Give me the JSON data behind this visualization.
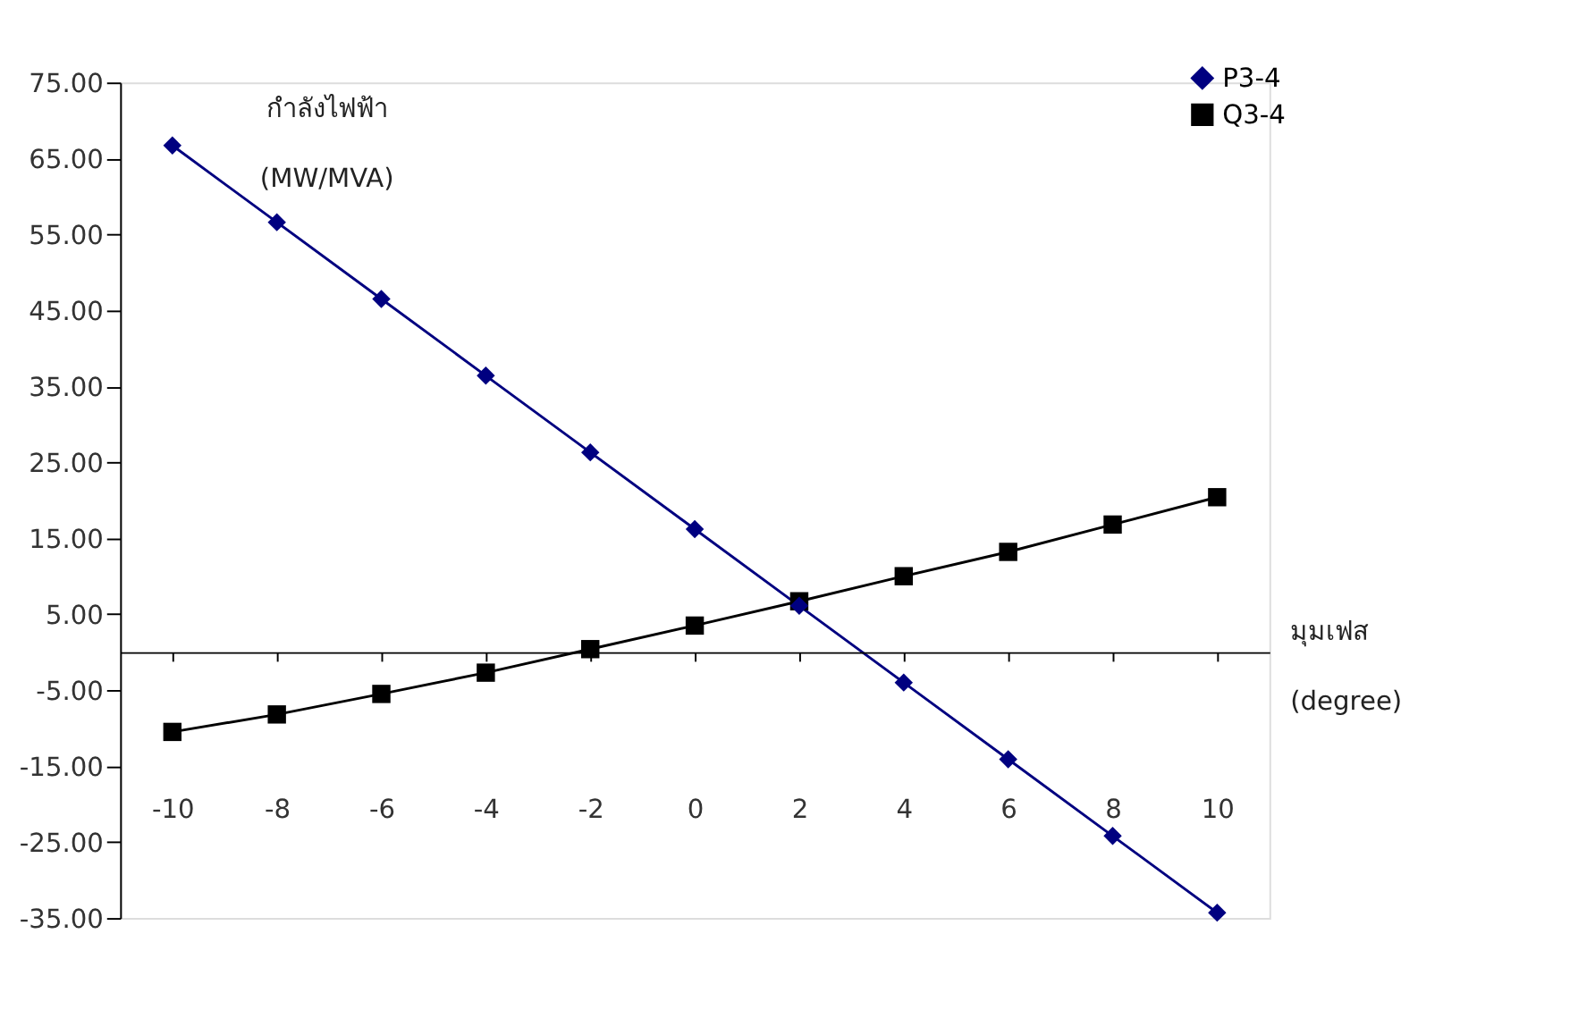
{
  "chart_data": {
    "type": "line",
    "xlabel": "มุมเฟส\n(degree)",
    "ylabel": "กำลังไฟฟ้า\n(MW/MVA)",
    "categories": [
      "-10",
      "-8",
      "-6",
      "-4",
      "-2",
      "0",
      "2",
      "4",
      "6",
      "8",
      "10"
    ],
    "series": [
      {
        "name": "P3-4",
        "color": "#000080",
        "marker": "diamond",
        "values": [
          66.7,
          56.6,
          46.5,
          36.4,
          26.3,
          16.2,
          6.1,
          -4.0,
          -14.1,
          -24.2,
          -34.3
        ]
      },
      {
        "name": "Q3-4",
        "color": "#000000",
        "marker": "square",
        "values": [
          -10.5,
          -8.2,
          -5.5,
          -2.7,
          0.4,
          3.5,
          6.7,
          10.0,
          13.2,
          16.8,
          20.4
        ]
      }
    ],
    "ylim": [
      -35,
      75
    ],
    "yticks": [
      {
        "value": -35,
        "label": "-35.00"
      },
      {
        "value": -25,
        "label": "-25.00"
      },
      {
        "value": -15,
        "label": "-15.00"
      },
      {
        "value": -5,
        "label": "-5.00"
      },
      {
        "value": 5,
        "label": "5.00"
      },
      {
        "value": 15,
        "label": "15.00"
      },
      {
        "value": 25,
        "label": "25.00"
      },
      {
        "value": 35,
        "label": "35.00"
      },
      {
        "value": 45,
        "label": "45.00"
      },
      {
        "value": 55,
        "label": "55.00"
      },
      {
        "value": 65,
        "label": "65.00"
      },
      {
        "value": 75,
        "label": "75.00"
      }
    ],
    "grid": false,
    "legend": "top right",
    "line_style": "solid"
  }
}
